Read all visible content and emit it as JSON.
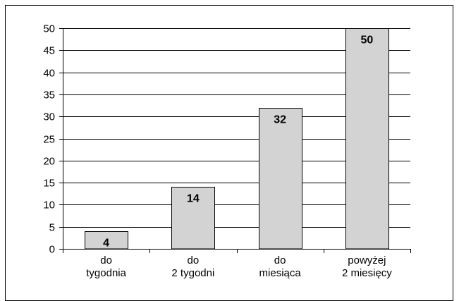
{
  "chart_data": {
    "type": "bar",
    "categories": [
      [
        "do",
        "tygodnia"
      ],
      [
        "do",
        "2 tygodni"
      ],
      [
        "do",
        "miesiąca"
      ],
      [
        "powyżej",
        "2 miesięcy"
      ]
    ],
    "values": [
      4,
      14,
      32,
      50
    ],
    "data_labels": [
      "4",
      "14",
      "32",
      "50"
    ],
    "yticks": [
      0,
      5,
      10,
      15,
      20,
      25,
      30,
      35,
      40,
      45,
      50
    ],
    "ylim": [
      0,
      50
    ],
    "grid": true,
    "title": "",
    "xlabel": "",
    "ylabel": "",
    "colors": {
      "bar": "#d3d3d3",
      "bar_border": "#000000",
      "grid": "#000000"
    }
  }
}
